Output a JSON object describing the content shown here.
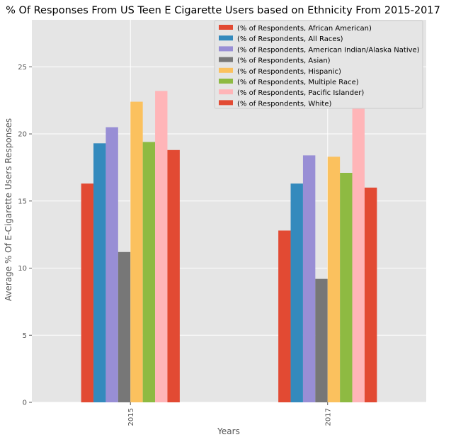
{
  "chart_data": {
    "type": "bar",
    "title": "% Of Responses From US Teen E Cigarette Users based on Ethnicity From 2015-2017",
    "xlabel": "Years",
    "ylabel": "Average % Of E-Cigarette Users Responses",
    "categories": [
      "2015",
      "2017"
    ],
    "ylim": [
      0,
      28.5
    ],
    "yticks": [
      0,
      5,
      10,
      15,
      20,
      25
    ],
    "grid": true,
    "legend_position": "top-right",
    "series": [
      {
        "name": "(% of Respondents, African American)",
        "color": "#E24A33",
        "values": [
          16.3,
          12.8
        ]
      },
      {
        "name": "(% of Respondents, All Races)",
        "color": "#348ABD",
        "values": [
          19.3,
          16.3
        ]
      },
      {
        "name": "(% of Respondents, American Indian/Alaska Native)",
        "color": "#988ED5",
        "values": [
          20.5,
          18.4
        ]
      },
      {
        "name": "(% of Respondents, Asian)",
        "color": "#777777",
        "values": [
          11.2,
          9.2
        ]
      },
      {
        "name": "(% of Respondents, Hispanic)",
        "color": "#FBC15E",
        "values": [
          22.4,
          18.3
        ]
      },
      {
        "name": "(% of Respondents, Multiple Race)",
        "color": "#8EBA42",
        "values": [
          19.4,
          17.1
        ]
      },
      {
        "name": "(% of Respondents, Pacific Islander)",
        "color": "#FFB5B8",
        "values": [
          23.2,
          27.0
        ]
      },
      {
        "name": "(% of Respondents, White)",
        "color": "#E24A33",
        "values": [
          18.8,
          16.0
        ]
      }
    ]
  }
}
